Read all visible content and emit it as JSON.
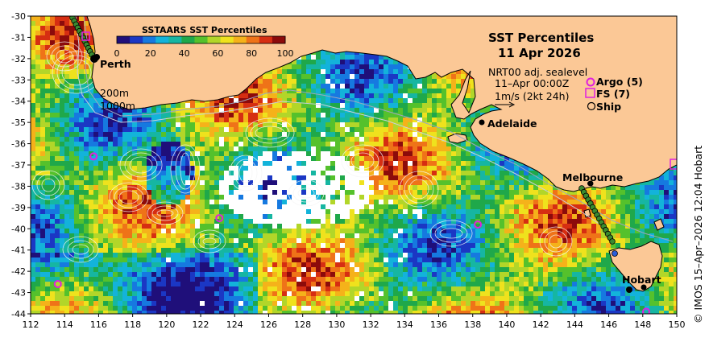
{
  "title": "SST Percentiles",
  "date": "11 Apr 2026",
  "colorbar": {
    "title": "SSTAARS SST Percentiles",
    "ticks": [
      "0",
      "20",
      "40",
      "60",
      "80",
      "100"
    ],
    "colors": [
      "#1f0f7a",
      "#1b37c4",
      "#1679e0",
      "#13b3da",
      "#16b6a2",
      "#1fa84a",
      "#55c12c",
      "#b2d629",
      "#efe21d",
      "#f5b21a",
      "#ef7318",
      "#d62e12",
      "#8c0b0b"
    ]
  },
  "info": {
    "model": "NRT00 adj. sealevel",
    "time": "11–Apr 00:00Z",
    "velocity": "1m/s (2kt 24h)"
  },
  "legend": {
    "argo": "Argo (5)",
    "fs": "FS (7)",
    "ship": "Ship"
  },
  "depths": {
    "d200": "200m",
    "d1000": "1000m"
  },
  "cities": {
    "perth": "Perth",
    "adelaide": "Adelaide",
    "melbourne": "Melbourne",
    "hobart": "Hobart"
  },
  "credit": "© IMOS 15–Apr–2026 12:04 Hobart",
  "axes": {
    "x_ticks": [
      "112",
      "114",
      "116",
      "118",
      "120",
      "122",
      "124",
      "126",
      "128",
      "130",
      "132",
      "134",
      "136",
      "138",
      "140",
      "142",
      "144",
      "146",
      "148",
      "150"
    ],
    "y_ticks": [
      "-30",
      "-31",
      "-32",
      "-33",
      "-34",
      "-35",
      "-36",
      "-37",
      "-38",
      "-39",
      "-40",
      "-41",
      "-42",
      "-43",
      "-44"
    ]
  },
  "colors": {
    "land": "#fbc896",
    "coast": "#000000",
    "argo": "#e020e0",
    "frame": "#000000"
  }
}
